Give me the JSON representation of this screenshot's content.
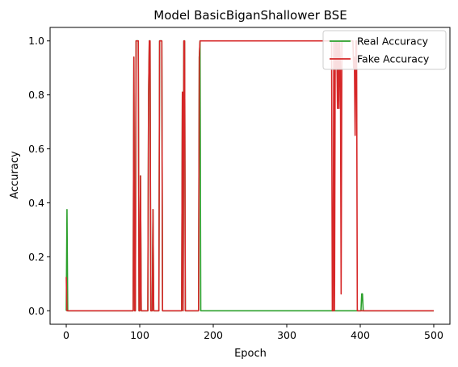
{
  "chart_data": {
    "type": "line",
    "title": "Model BasicBiganShallower BSE",
    "xlabel": "Epoch",
    "ylabel": "Accuracy",
    "xlim": [
      -22,
      522
    ],
    "ylim": [
      -0.05,
      1.05
    ],
    "xticks": [
      0,
      100,
      200,
      300,
      400,
      500
    ],
    "yticks": [
      0.0,
      0.2,
      0.4,
      0.6,
      0.8,
      1.0
    ],
    "xtick_labels": [
      "0",
      "100",
      "200",
      "300",
      "400",
      "500"
    ],
    "ytick_labels": [
      "0.0",
      "0.2",
      "0.4",
      "0.6",
      "0.8",
      "1.0"
    ],
    "grid": false,
    "legend_position": "top-right",
    "series": [
      {
        "name": "Real Accuracy",
        "color": "#2ca02c",
        "x": [
          0,
          1,
          2,
          3,
          91,
          92,
          93,
          94,
          95,
          96,
          97,
          98,
          99,
          100,
          101,
          102,
          103,
          104,
          111,
          112,
          113,
          114,
          115,
          116,
          117,
          118,
          119,
          120,
          121,
          126,
          127,
          128,
          129,
          130,
          131,
          132,
          133,
          157,
          158,
          159,
          160,
          161,
          162,
          163,
          180,
          181,
          182,
          183,
          400,
          401,
          402,
          403,
          404,
          405,
          500
        ],
        "y": [
          0.0,
          0.375,
          0.0,
          0.0,
          0.0,
          0.94,
          0.0,
          0.0,
          1.0,
          1.0,
          1.0,
          1.0,
          0.0,
          0.0,
          0.5,
          0.0,
          0.0,
          0.0,
          0.0,
          0.8,
          1.0,
          1.0,
          0.0,
          0.0,
          0.0,
          0.375,
          0.0,
          0.0,
          0.0,
          0.0,
          1.0,
          1.0,
          1.0,
          1.0,
          0.0,
          0.0,
          0.0,
          0.0,
          0.81,
          0.0,
          1.0,
          1.0,
          0.0,
          0.0,
          0.0,
          0.94,
          1.0,
          0.0,
          0.0,
          0.0,
          0.0625,
          0.0625,
          0.0,
          0.0,
          0.0
        ]
      },
      {
        "name": "Fake Accuracy",
        "color": "#d62728",
        "x": [
          0,
          1,
          2,
          3,
          91,
          92,
          93,
          94,
          95,
          96,
          97,
          98,
          99,
          100,
          101,
          102,
          103,
          104,
          111,
          112,
          113,
          114,
          115,
          116,
          117,
          118,
          119,
          120,
          121,
          126,
          127,
          128,
          129,
          130,
          131,
          132,
          133,
          157,
          158,
          159,
          160,
          161,
          162,
          163,
          180,
          181,
          182,
          183,
          184,
          360,
          361,
          362,
          363,
          364,
          365,
          366,
          367,
          368,
          369,
          370,
          371,
          372,
          373,
          374,
          375,
          376,
          377,
          378,
          379,
          380,
          381,
          382,
          383,
          384,
          385,
          386,
          387,
          388,
          389,
          390,
          391,
          392,
          393,
          394,
          395,
          396,
          397,
          398,
          500
        ],
        "y": [
          0.125,
          0.0,
          0.0,
          0.0,
          0.0,
          0.94,
          0.0,
          0.0,
          1.0,
          1.0,
          1.0,
          1.0,
          0.0,
          0.0,
          0.5,
          0.0,
          0.0,
          0.0,
          0.0,
          0.8,
          1.0,
          1.0,
          0.0,
          0.0,
          0.0,
          0.375,
          0.0,
          0.0,
          0.0,
          0.0,
          1.0,
          1.0,
          1.0,
          1.0,
          0.0,
          0.0,
          0.0,
          0.0,
          0.81,
          0.0,
          1.0,
          1.0,
          0.0,
          0.0,
          0.0,
          0.94,
          1.0,
          1.0,
          1.0,
          1.0,
          1.0,
          0.0,
          0.0,
          1.0,
          0.0,
          1.0,
          0.9,
          1.0,
          0.75,
          1.0,
          0.75,
          1.0,
          0.9,
          0.0625,
          1.0,
          1.0,
          1.0,
          1.0,
          1.0,
          1.0,
          1.0,
          1.0,
          1.0,
          1.0,
          1.0,
          1.0,
          1.0,
          1.0,
          1.0,
          1.0,
          0.9,
          0.94,
          0.65,
          1.0,
          1.0,
          0.0,
          0.0,
          0.0,
          0.0
        ]
      }
    ]
  }
}
